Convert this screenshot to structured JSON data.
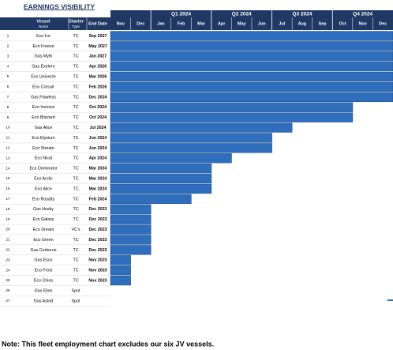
{
  "header": {
    "title": "EARNINGS VISIBILITY",
    "columns": [
      {
        "label": "Vessel",
        "sub": "Name"
      },
      {
        "label": "Charter",
        "sub": "Type"
      },
      {
        "label": "End Date"
      }
    ],
    "quarters": [
      "Q1 2024",
      "Q2 2024",
      "Q3 2024",
      "Q4 2024"
    ],
    "months": [
      "Nov",
      "Dec",
      "Jan",
      "Feb",
      "Mar",
      "Apr",
      "May",
      "Jun",
      "Jul",
      "Aug",
      "Sep",
      "Oct",
      "Nov",
      "Dec"
    ]
  },
  "rows": [
    {
      "no": 1,
      "vessel": "Eco Ice",
      "charter": "TC",
      "end": "Sep 2027"
    },
    {
      "no": 2,
      "vessel": "Eco Freeze",
      "charter": "TC",
      "end": "May 2027"
    },
    {
      "no": 3,
      "vessel": "Gas Myth",
      "charter": "TC",
      "end": "Jan 2027"
    },
    {
      "no": 4,
      "vessel": "Gas Exelero",
      "charter": "TC",
      "end": "Apr 2026"
    },
    {
      "no": 5,
      "vessel": "Eco Universe",
      "charter": "TC",
      "end": "Mar 2026"
    },
    {
      "no": 6,
      "vessel": "Eco Corsair",
      "charter": "TC",
      "end": "Feb 2026"
    },
    {
      "no": 7,
      "vessel": "Gas Flawless",
      "charter": "TC",
      "end": "Dec 2024"
    },
    {
      "no": 8,
      "vessel": "Eco Invictus",
      "charter": "TC",
      "end": "Oct 2024"
    },
    {
      "no": 9,
      "vessel": "Eco Blizzard",
      "charter": "TC",
      "end": "Oct 2024"
    },
    {
      "no": 10,
      "vessel": "Gas Alice",
      "charter": "TC",
      "end": "Jul 2024"
    },
    {
      "no": 11,
      "vessel": "Eco Elysium",
      "charter": "TC",
      "end": "Jun 2024"
    },
    {
      "no": 12,
      "vessel": "Eco Stream",
      "charter": "TC",
      "end": "Jun 2024"
    },
    {
      "no": 13,
      "vessel": "Eco Nical",
      "charter": "TC",
      "end": "Apr 2024"
    },
    {
      "no": 14,
      "vessel": "Eco Dominator",
      "charter": "TC",
      "end": "Mar 2024"
    },
    {
      "no": 15,
      "vessel": "Eco Arctic",
      "charter": "TC",
      "end": "Mar 2024"
    },
    {
      "no": 16,
      "vessel": "Eco Alice",
      "charter": "TC",
      "end": "Mar 2024"
    },
    {
      "no": 17,
      "vessel": "Eco Royalty",
      "charter": "TC",
      "end": "Feb 2024"
    },
    {
      "no": 18,
      "vessel": "Gas Husky",
      "charter": "TC",
      "end": "Dec 2023"
    },
    {
      "no": 19,
      "vessel": "Eco Galaxy",
      "charter": "TC",
      "end": "Dec 2023"
    },
    {
      "no": 20,
      "vessel": "Eco Dream",
      "charter": "VC's",
      "end": "Dec 2023"
    },
    {
      "no": 21,
      "vessel": "Eco Green",
      "charter": "TC",
      "end": "Dec 2023"
    },
    {
      "no": 22,
      "vessel": "Gas Cerberus",
      "charter": "TC",
      "end": "Dec 2023"
    },
    {
      "no": 23,
      "vessel": "Gas Esco",
      "charter": "TC",
      "end": "Nov 2023"
    },
    {
      "no": 24,
      "vessel": "Eco Frost",
      "charter": "TC",
      "end": "Nov 2023"
    },
    {
      "no": 25,
      "vessel": "Eco Chios",
      "charter": "TC",
      "end": "Nov 2023"
    },
    {
      "no": 26,
      "vessel": "Gas Elixir",
      "charter": "Spot"
    },
    {
      "no": 27,
      "vessel": "Gas Astrid",
      "charter": "Spot"
    }
  ],
  "note": "Note: This fleet employment chart excludes our six JV vessels."
}
